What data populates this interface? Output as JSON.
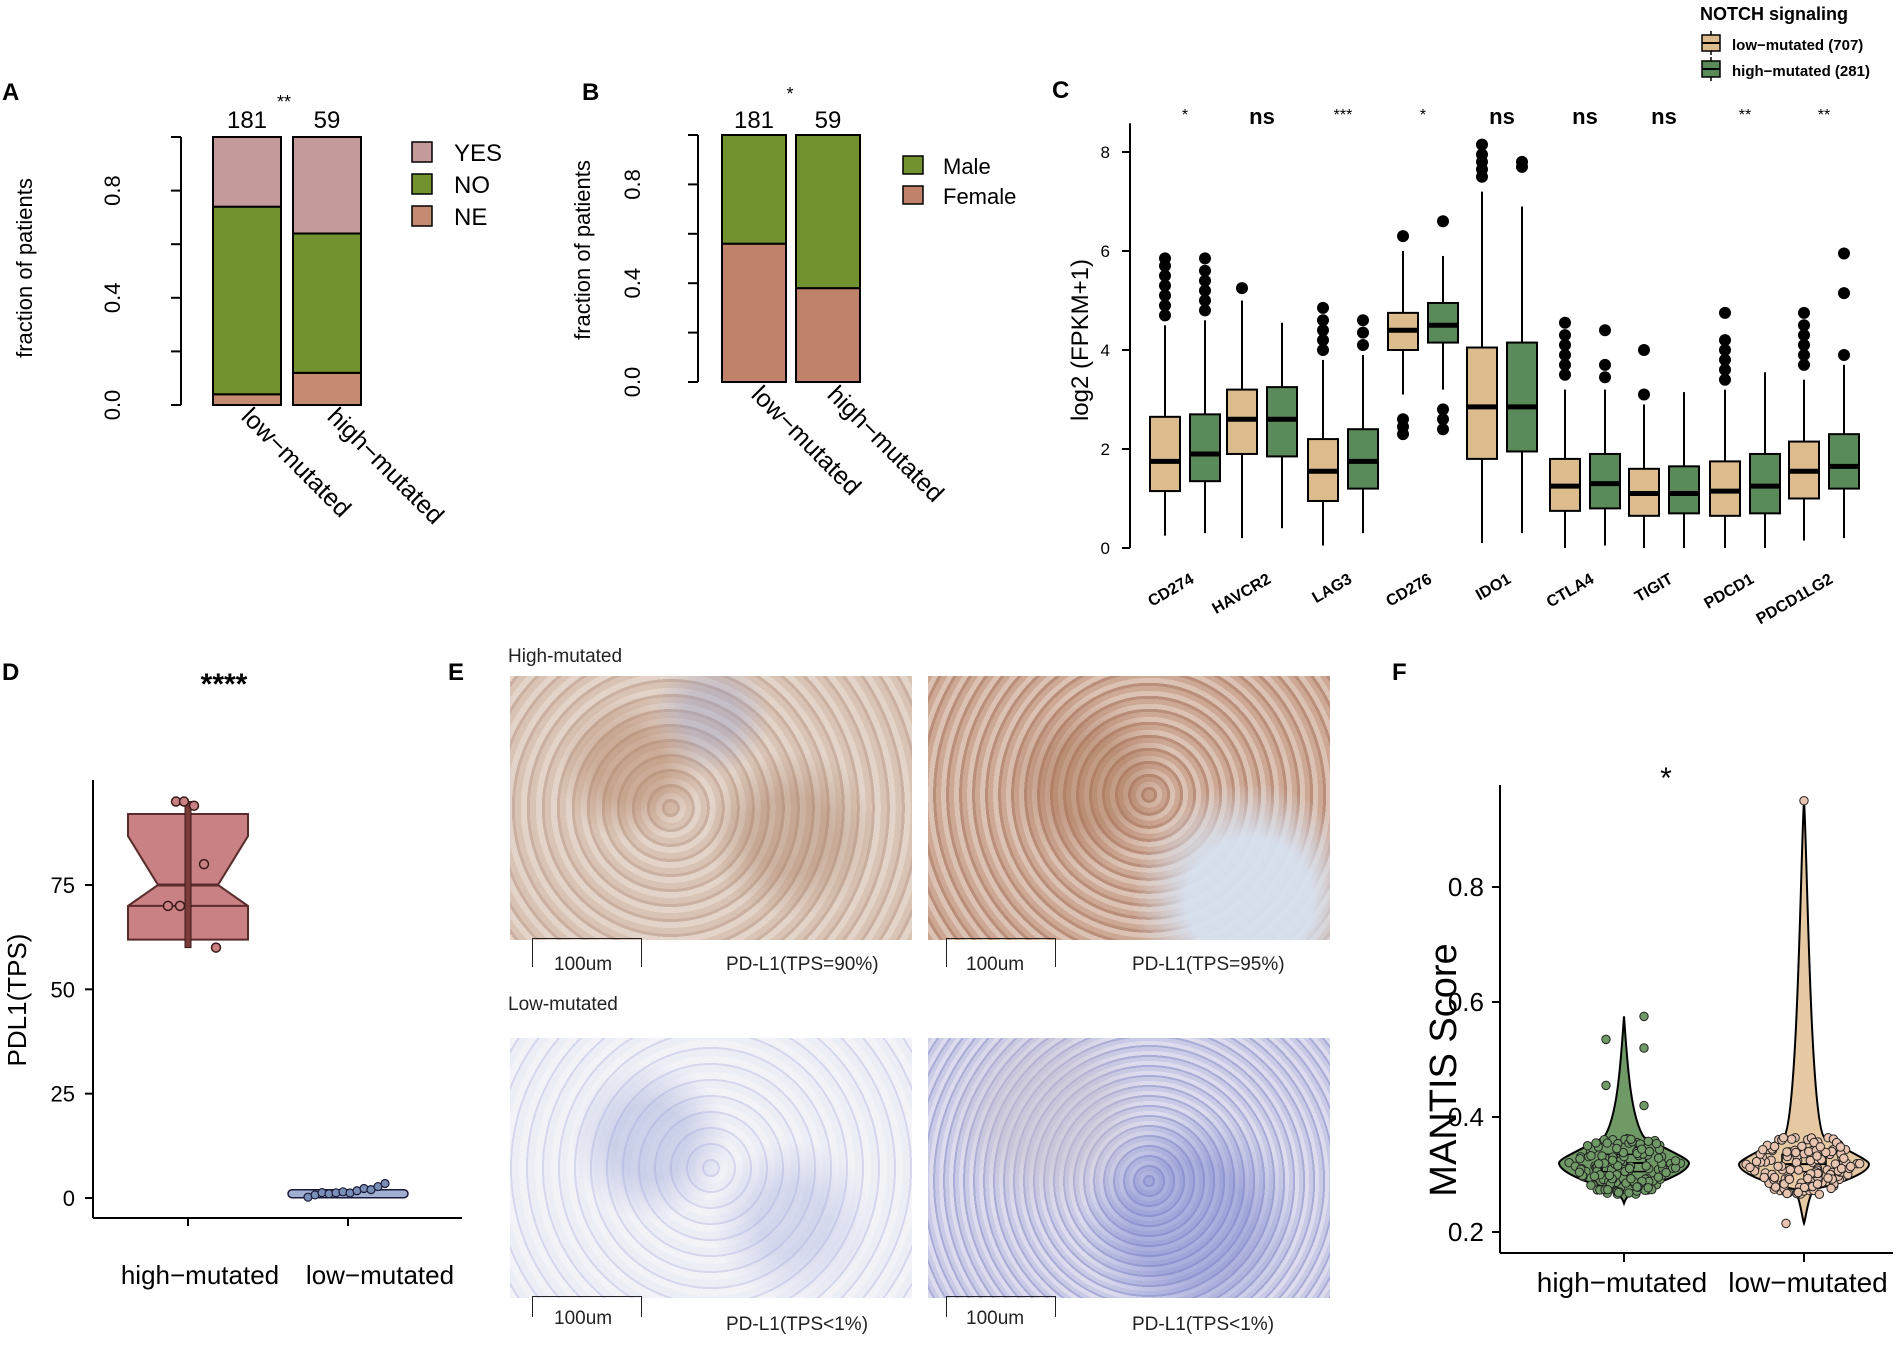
{
  "panels": {
    "A": {
      "letter": "A",
      "ylabel": "fraction of patients",
      "counts": [
        "181",
        "59"
      ],
      "signif": "**",
      "chart_data": {
        "type": "bar",
        "stacked": true,
        "categories": [
          "low−mutated",
          "high−mutated"
        ],
        "series": [
          {
            "name": "NE",
            "values": [
              0.04,
              0.12
            ],
            "color": "#c58a72"
          },
          {
            "name": "NO",
            "values": [
              0.7,
              0.52
            ],
            "color": "#72922f"
          },
          {
            "name": "YES",
            "values": [
              0.26,
              0.36
            ],
            "color": "#c49a9b"
          }
        ],
        "yticks": [
          "0.0",
          "0.4",
          "0.8"
        ],
        "ylim": [
          0,
          1
        ]
      }
    },
    "B": {
      "letter": "B",
      "ylabel": "fraction of patients",
      "counts": [
        "181",
        "59"
      ],
      "signif": "*",
      "chart_data": {
        "type": "bar",
        "stacked": true,
        "categories": [
          "low−mutated",
          "high−mutated"
        ],
        "series": [
          {
            "name": "Female",
            "values": [
              0.56,
              0.38
            ],
            "color": "#c0826a"
          },
          {
            "name": "Male",
            "values": [
              0.44,
              0.62
            ],
            "color": "#72922f"
          }
        ],
        "yticks": [
          "0.0",
          "0.4",
          "0.8"
        ],
        "ylim": [
          0,
          1
        ]
      }
    },
    "C": {
      "letter": "C",
      "ylabel": "log2 (FPKM+1)",
      "legend_title": "NOTCH signaling",
      "chart_data": {
        "type": "box",
        "categories": [
          "CD274",
          "HAVCR2",
          "LAG3",
          "CD276",
          "IDO1",
          "CTLA4",
          "TIGIT",
          "PDCD1",
          "PDCD1LG2"
        ],
        "significance": [
          "*",
          "ns",
          "***",
          "*",
          "ns",
          "ns",
          "ns",
          "**",
          "**"
        ],
        "ylim": [
          0,
          8.5
        ],
        "yticks": [
          "0",
          "2",
          "4",
          "6",
          "8"
        ],
        "series": [
          {
            "name": "low−mutated (707)",
            "color": "#dcbc8c",
            "boxes": [
              {
                "min": 0.25,
                "q1": 1.15,
                "med": 1.75,
                "q3": 2.65,
                "max": 4.5,
                "out": [
                  4.7,
                  4.9,
                  5.1,
                  5.3,
                  5.5,
                  5.7,
                  5.85
                ]
              },
              {
                "min": 0.2,
                "q1": 1.9,
                "med": 2.6,
                "q3": 3.2,
                "max": 5.0,
                "out": [
                  5.25
                ]
              },
              {
                "min": 0.05,
                "q1": 0.95,
                "med": 1.55,
                "q3": 2.2,
                "max": 3.8,
                "out": [
                  4.0,
                  4.2,
                  4.4,
                  4.6,
                  4.85
                ]
              },
              {
                "min": 3.1,
                "q1": 4.0,
                "med": 4.4,
                "q3": 4.75,
                "max": 6.0,
                "out": [
                  6.3,
                  2.3,
                  2.45,
                  2.6
                ]
              },
              {
                "min": 0.1,
                "q1": 1.8,
                "med": 2.85,
                "q3": 4.05,
                "max": 7.2,
                "out": [
                  7.5,
                  7.65,
                  7.8,
                  7.95,
                  8.15
                ]
              },
              {
                "min": 0.0,
                "q1": 0.75,
                "med": 1.25,
                "q3": 1.8,
                "max": 3.2,
                "out": [
                  3.5,
                  3.7,
                  3.9,
                  4.1,
                  4.3,
                  4.55
                ]
              },
              {
                "min": 0.0,
                "q1": 0.65,
                "med": 1.1,
                "q3": 1.6,
                "max": 2.9,
                "out": [
                  3.1,
                  4.0
                ]
              },
              {
                "min": 0.0,
                "q1": 0.65,
                "med": 1.15,
                "q3": 1.75,
                "max": 3.2,
                "out": [
                  3.4,
                  3.6,
                  3.8,
                  4.0,
                  4.2,
                  4.75
                ]
              },
              {
                "min": 0.15,
                "q1": 1.0,
                "med": 1.55,
                "q3": 2.15,
                "max": 3.4,
                "out": [
                  3.7,
                  3.9,
                  4.1,
                  4.3,
                  4.5,
                  4.75
                ]
              }
            ]
          },
          {
            "name": "high−mutated (281)",
            "color": "#5a8a5a",
            "boxes": [
              {
                "min": 0.3,
                "q1": 1.35,
                "med": 1.9,
                "q3": 2.7,
                "max": 4.6,
                "out": [
                  4.8,
                  5.0,
                  5.2,
                  5.4,
                  5.6,
                  5.85
                ]
              },
              {
                "min": 0.4,
                "q1": 1.85,
                "med": 2.6,
                "q3": 3.25,
                "max": 4.55,
                "out": []
              },
              {
                "min": 0.3,
                "q1": 1.2,
                "med": 1.75,
                "q3": 2.4,
                "max": 3.9,
                "out": [
                  4.1,
                  4.35,
                  4.6
                ]
              },
              {
                "min": 3.2,
                "q1": 4.15,
                "med": 4.5,
                "q3": 4.95,
                "max": 5.9,
                "out": [
                  6.6,
                  2.4,
                  2.6,
                  2.8
                ]
              },
              {
                "min": 0.3,
                "q1": 1.95,
                "med": 2.85,
                "q3": 4.15,
                "max": 6.9,
                "out": [
                  7.7,
                  7.8
                ]
              },
              {
                "min": 0.05,
                "q1": 0.8,
                "med": 1.3,
                "q3": 1.9,
                "max": 3.2,
                "out": [
                  3.45,
                  3.7,
                  4.4
                ]
              },
              {
                "min": 0.0,
                "q1": 0.7,
                "med": 1.1,
                "q3": 1.65,
                "max": 3.15,
                "out": []
              },
              {
                "min": 0.0,
                "q1": 0.7,
                "med": 1.25,
                "q3": 1.9,
                "max": 3.55,
                "out": []
              },
              {
                "min": 0.2,
                "q1": 1.2,
                "med": 1.65,
                "q3": 2.3,
                "max": 3.7,
                "out": [
                  3.9,
                  5.15,
                  5.95
                ]
              }
            ]
          }
        ]
      }
    },
    "D": {
      "letter": "D",
      "ylabel": "PDL1(TPS)",
      "signif": "****",
      "chart_data": {
        "type": "box",
        "categories": [
          "high−mutated",
          "low−mutated"
        ],
        "ylim": [
          -3,
          105
        ],
        "yticks": [
          "0",
          "25",
          "50",
          "75"
        ],
        "boxes": [
          {
            "min": 60,
            "q1": 70,
            "med": 75,
            "q3": 92,
            "max": 95,
            "color": "#c98183",
            "points": [
              95,
              95,
              94,
              80,
              70,
              70,
              60
            ]
          },
          {
            "min": 0,
            "q1": 0.5,
            "med": 1,
            "q3": 1.5,
            "max": 3,
            "color": "#7a8fb5",
            "points": [
              0.2,
              0.5,
              0.8,
              1,
              1,
              1,
              1.2,
              1.5,
              1.8,
              2,
              2.5,
              3
            ]
          }
        ]
      }
    },
    "E": {
      "letter": "E",
      "high_label": "High-mutated",
      "low_label": "Low-mutated",
      "scale_label": "100um",
      "images": [
        {
          "caption": "PD-L1(TPS=90%)"
        },
        {
          "caption": "PD-L1(TPS=95%)"
        },
        {
          "caption": "PD-L1(TPS<1%)"
        },
        {
          "caption": "PD-L1(TPS<1%)"
        }
      ]
    },
    "F": {
      "letter": "F",
      "ylabel": "MANTIS Score",
      "signif": "*",
      "chart_data": {
        "type": "violin",
        "categories": [
          "high−mutated",
          "low−mutated"
        ],
        "ylim": [
          0.19,
          0.97
        ],
        "yticks": [
          "0.2",
          "0.4",
          "0.6",
          "0.8"
        ],
        "groups": [
          {
            "color": "#6f9a66",
            "min": 0.25,
            "q1": 0.305,
            "med": 0.32,
            "q3": 0.335,
            "max": 0.575,
            "outliers": [
              0.575,
              0.535,
              0.52,
              0.455,
              0.42
            ]
          },
          {
            "color": "#e6c9a3",
            "min": 0.215,
            "q1": 0.305,
            "med": 0.318,
            "q3": 0.335,
            "max": 0.95,
            "outliers": [
              0.95,
              0.215
            ]
          }
        ]
      }
    }
  }
}
